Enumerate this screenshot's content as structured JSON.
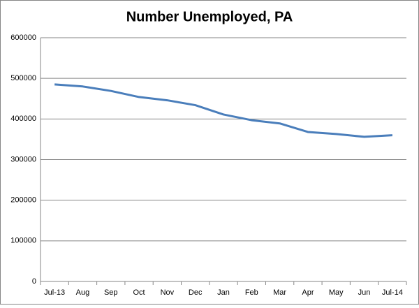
{
  "chart_data": {
    "type": "line",
    "title": "Number Unemployed, PA",
    "categories": [
      "Jul-13",
      "Aug",
      "Sep",
      "Oct",
      "Nov",
      "Dec",
      "Jan",
      "Feb",
      "Mar",
      "Apr",
      "May",
      "Jun",
      "Jul-14"
    ],
    "values": [
      485000,
      480000,
      469000,
      454000,
      446000,
      434000,
      411000,
      397000,
      389000,
      368000,
      363000,
      356000,
      360000
    ],
    "color": "#4a7ebb",
    "ylim": [
      0,
      600000
    ],
    "yticks": [
      0,
      100000,
      200000,
      300000,
      400000,
      500000,
      600000
    ],
    "grid": true
  }
}
